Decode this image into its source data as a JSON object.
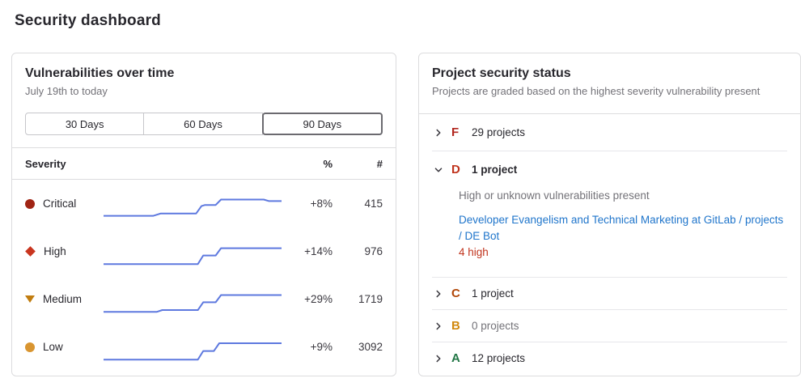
{
  "page": {
    "title": "Security dashboard"
  },
  "colors": {
    "sparkline": "#5e79df",
    "link_blue": "#1f75cb",
    "note_red": "#c0341d",
    "card_border": "#dcdcde"
  },
  "vuln_card": {
    "title": "Vulnerabilities over time",
    "subtitle": "July 19th to today",
    "range_buttons": [
      {
        "label": "30 Days",
        "selected": false
      },
      {
        "label": "60 Days",
        "selected": false
      },
      {
        "label": "90 Days",
        "selected": true
      }
    ],
    "table": {
      "header": {
        "severity": "Severity",
        "percent": "%",
        "count": "#"
      },
      "rows": [
        {
          "severity": "Critical",
          "icon": "severity-critical-icon",
          "icon_color": "#a02414",
          "percent": "+8%",
          "count": "415",
          "spark": [
            [
              0,
              88
            ],
            [
              28,
              88
            ],
            [
              32,
              78
            ],
            [
              52,
              78
            ],
            [
              55,
              45
            ],
            [
              57,
              40
            ],
            [
              63,
              40
            ],
            [
              66,
              16
            ],
            [
              90,
              16
            ],
            [
              93,
              23
            ],
            [
              100,
              23
            ]
          ]
        },
        {
          "severity": "High",
          "icon": "severity-high-icon",
          "icon_color": "#c9351f",
          "percent": "+14%",
          "count": "976",
          "spark": [
            [
              0,
              90
            ],
            [
              53,
              90
            ],
            [
              56,
              52
            ],
            [
              63,
              52
            ],
            [
              66,
              20
            ],
            [
              100,
              20
            ]
          ]
        },
        {
          "severity": "Medium",
          "icon": "severity-medium-icon",
          "icon_color": "#c17d10",
          "percent": "+29%",
          "count": "1719",
          "spark": [
            [
              0,
              90
            ],
            [
              30,
              90
            ],
            [
              33,
              82
            ],
            [
              53,
              82
            ],
            [
              56,
              48
            ],
            [
              63,
              48
            ],
            [
              66,
              16
            ],
            [
              100,
              16
            ]
          ]
        },
        {
          "severity": "Low",
          "icon": "severity-low-icon",
          "icon_color": "#d99530",
          "percent": "+9%",
          "count": "3092",
          "spark": [
            [
              0,
              90
            ],
            [
              53,
              90
            ],
            [
              56,
              52
            ],
            [
              62,
              52
            ],
            [
              65,
              18
            ],
            [
              100,
              18
            ]
          ]
        }
      ]
    },
    "chart_data": {
      "type": "line",
      "title": "Vulnerabilities over time",
      "x_range": "July 19th to today (90 Days)",
      "series": [
        {
          "name": "Critical",
          "change_percent": "+8%",
          "current_count": 415
        },
        {
          "name": "High",
          "change_percent": "+14%",
          "current_count": 976
        },
        {
          "name": "Medium",
          "change_percent": "+29%",
          "current_count": 1719
        },
        {
          "name": "Low",
          "change_percent": "+9%",
          "current_count": 3092
        }
      ]
    }
  },
  "status_card": {
    "title": "Project security status",
    "subtitle": "Projects are graded based on the highest severity vulnerability present",
    "groups": [
      {
        "grade": "F",
        "grade_color": "#b2271f",
        "chevron_icon": "chevron-right-icon",
        "label": "29 projects",
        "expanded": false,
        "muted": false,
        "bold": false
      },
      {
        "grade": "D",
        "grade_color": "#c0341d",
        "chevron_icon": "chevron-down-icon",
        "label": "1 project",
        "expanded": true,
        "muted": false,
        "bold": true,
        "description": "High or unknown vulnerabilities present",
        "project_link": "Developer Evangelism and Technical Marketing at GitLab / projects / DE Bot",
        "severity_note": "4 high"
      },
      {
        "grade": "C",
        "grade_color": "#b14708",
        "chevron_icon": "chevron-right-icon",
        "label": "1 project",
        "expanded": false,
        "muted": false,
        "bold": false
      },
      {
        "grade": "B",
        "grade_color": "#d1890f",
        "chevron_icon": "chevron-right-icon",
        "label": "0 projects",
        "expanded": false,
        "muted": true,
        "bold": false
      },
      {
        "grade": "A",
        "grade_color": "#217645",
        "chevron_icon": "chevron-right-icon",
        "label": "12 projects",
        "expanded": false,
        "muted": false,
        "bold": false
      }
    ]
  }
}
